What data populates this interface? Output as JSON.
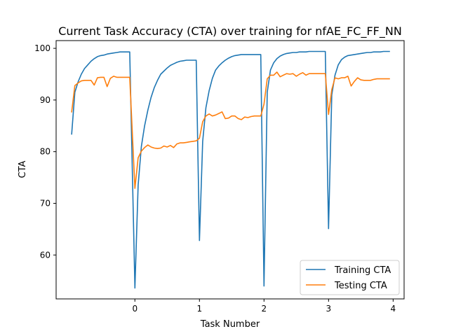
{
  "chart_data": {
    "type": "line",
    "title": "Current Task Accuracy (CTA) over training for nfAE_FC_FF_NN",
    "xlabel": "Task Number",
    "ylabel": "CTA",
    "xlim": [
      -1.22,
      4.17
    ],
    "ylim": [
      51.5,
      101.5
    ],
    "xticks": [
      0,
      1,
      2,
      3,
      4
    ],
    "yticks": [
      60,
      70,
      80,
      90,
      100
    ],
    "grid": false,
    "legend_position": "lower right",
    "series": [
      {
        "name": "Training CTA",
        "color": "#1f77b4",
        "x": [
          -0.98,
          -0.93,
          -0.88,
          -0.83,
          -0.78,
          -0.73,
          -0.68,
          -0.63,
          -0.58,
          -0.53,
          -0.48,
          -0.43,
          -0.38,
          -0.33,
          -0.28,
          -0.23,
          -0.18,
          -0.13,
          -0.08,
          0.0,
          0.05,
          0.1,
          0.15,
          0.2,
          0.25,
          0.3,
          0.35,
          0.4,
          0.45,
          0.5,
          0.55,
          0.6,
          0.65,
          0.7,
          0.75,
          0.8,
          0.85,
          0.9,
          0.95,
          1.0,
          1.05,
          1.1,
          1.15,
          1.2,
          1.25,
          1.3,
          1.35,
          1.4,
          1.45,
          1.5,
          1.55,
          1.6,
          1.65,
          1.7,
          1.75,
          1.8,
          1.85,
          1.9,
          1.95,
          2.0,
          2.05,
          2.1,
          2.15,
          2.2,
          2.25,
          2.3,
          2.35,
          2.4,
          2.45,
          2.5,
          2.55,
          2.6,
          2.65,
          2.7,
          2.75,
          2.8,
          2.85,
          2.9,
          2.95,
          3.0,
          3.05,
          3.1,
          3.15,
          3.2,
          3.25,
          3.3,
          3.35,
          3.4,
          3.45,
          3.5,
          3.55,
          3.6,
          3.65,
          3.7,
          3.75,
          3.8,
          3.85,
          3.9,
          3.95
        ],
        "values": [
          83.3,
          91.5,
          93.5,
          95.0,
          96.1,
          96.8,
          97.5,
          98.0,
          98.4,
          98.6,
          98.7,
          98.9,
          99.0,
          99.1,
          99.2,
          99.3,
          99.3,
          99.3,
          99.3,
          53.6,
          73.5,
          81.0,
          85.0,
          88.0,
          90.5,
          92.4,
          93.8,
          95.0,
          95.6,
          96.2,
          96.7,
          97.0,
          97.3,
          97.5,
          97.6,
          97.7,
          97.7,
          97.7,
          97.7,
          62.8,
          82.0,
          88.5,
          91.8,
          94.2,
          95.8,
          96.6,
          97.2,
          97.7,
          98.1,
          98.4,
          98.6,
          98.7,
          98.8,
          98.8,
          98.8,
          98.8,
          98.8,
          98.8,
          98.8,
          54.0,
          91.5,
          95.8,
          97.2,
          98.0,
          98.5,
          98.8,
          99.0,
          99.1,
          99.2,
          99.2,
          99.3,
          99.3,
          99.3,
          99.4,
          99.4,
          99.4,
          99.4,
          99.4,
          99.4,
          65.1,
          91.0,
          94.8,
          96.8,
          97.8,
          98.3,
          98.6,
          98.7,
          98.8,
          98.9,
          99.0,
          99.1,
          99.2,
          99.2,
          99.3,
          99.3,
          99.3,
          99.4,
          99.4,
          99.4
        ]
      },
      {
        "name": "Testing CTA",
        "color": "#ff7f0e",
        "x": [
          -0.98,
          -0.93,
          -0.88,
          -0.83,
          -0.78,
          -0.73,
          -0.68,
          -0.63,
          -0.58,
          -0.53,
          -0.48,
          -0.43,
          -0.38,
          -0.33,
          -0.28,
          -0.23,
          -0.18,
          -0.13,
          -0.08,
          0.0,
          0.05,
          0.1,
          0.15,
          0.2,
          0.25,
          0.3,
          0.35,
          0.4,
          0.45,
          0.5,
          0.55,
          0.6,
          0.65,
          0.7,
          0.75,
          0.8,
          0.85,
          0.9,
          0.95,
          1.0,
          1.05,
          1.1,
          1.15,
          1.2,
          1.25,
          1.3,
          1.35,
          1.4,
          1.45,
          1.5,
          1.55,
          1.6,
          1.65,
          1.7,
          1.75,
          1.8,
          1.85,
          1.9,
          1.95,
          2.0,
          2.05,
          2.1,
          2.15,
          2.2,
          2.25,
          2.3,
          2.35,
          2.4,
          2.45,
          2.5,
          2.55,
          2.6,
          2.65,
          2.7,
          2.75,
          2.8,
          2.85,
          2.9,
          2.95,
          3.0,
          3.05,
          3.1,
          3.15,
          3.2,
          3.25,
          3.3,
          3.35,
          3.4,
          3.45,
          3.5,
          3.55,
          3.6,
          3.65,
          3.7,
          3.75,
          3.8,
          3.85,
          3.9,
          3.95
        ],
        "values": [
          87.6,
          92.8,
          93.3,
          93.7,
          93.8,
          93.8,
          93.8,
          92.9,
          94.3,
          94.4,
          94.4,
          92.6,
          94.2,
          94.6,
          94.4,
          94.4,
          94.4,
          94.4,
          94.4,
          72.9,
          78.8,
          80.1,
          80.8,
          81.3,
          80.9,
          80.7,
          80.6,
          80.7,
          81.1,
          80.9,
          81.2,
          80.8,
          81.5,
          81.7,
          81.7,
          81.8,
          81.9,
          82.0,
          82.1,
          82.6,
          85.8,
          86.9,
          87.3,
          86.9,
          87.1,
          87.4,
          87.7,
          86.4,
          86.5,
          86.9,
          86.9,
          86.4,
          86.2,
          86.7,
          86.6,
          86.8,
          86.9,
          86.9,
          86.9,
          89.2,
          94.1,
          94.8,
          94.8,
          95.4,
          94.5,
          94.8,
          95.1,
          95.0,
          95.1,
          94.6,
          95.0,
          95.3,
          94.8,
          95.1,
          95.1,
          95.1,
          95.1,
          95.1,
          95.1,
          87.2,
          92.0,
          94.3,
          94.1,
          94.3,
          94.3,
          94.6,
          92.7,
          93.6,
          94.3,
          93.9,
          93.8,
          93.8,
          93.8,
          94.0,
          94.1,
          94.1,
          94.1,
          94.1,
          94.1
        ]
      }
    ]
  }
}
